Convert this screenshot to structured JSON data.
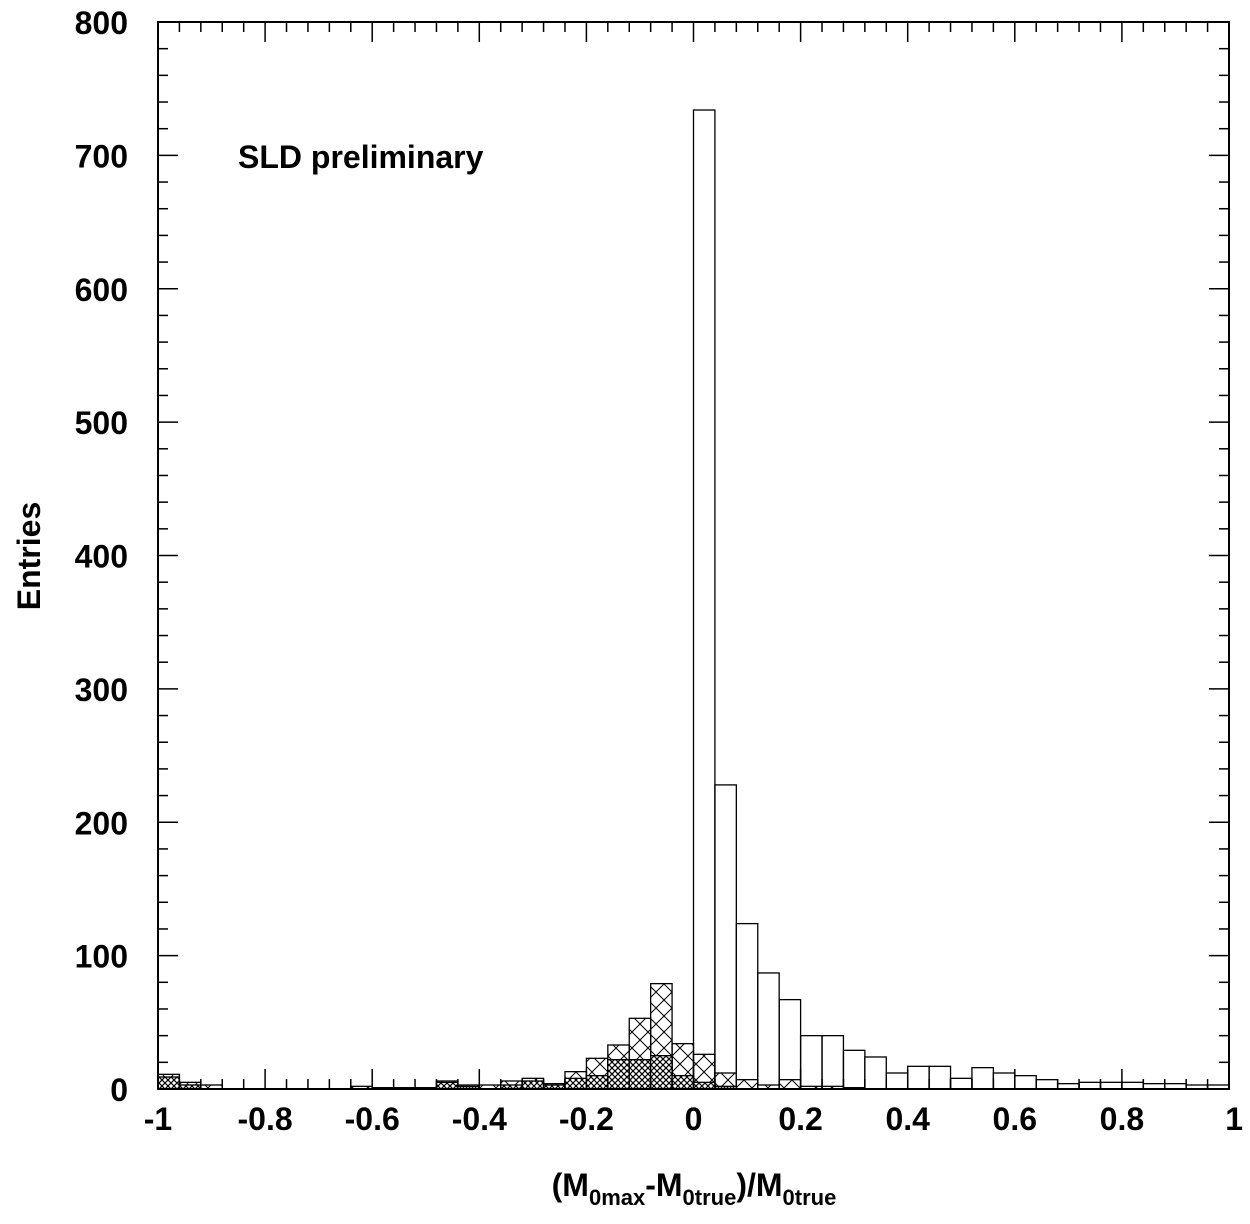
{
  "chart_data": {
    "type": "histogram",
    "annotation": "SLD preliminary",
    "ylabel": "Entries",
    "xlabel": {
      "parts": [
        {
          "text": "(M",
          "sub": false
        },
        {
          "text": "0max",
          "sub": true
        },
        {
          "text": "-M",
          "sub": false
        },
        {
          "text": "0true",
          "sub": true
        },
        {
          "text": ")/M",
          "sub": false
        },
        {
          "text": "0true",
          "sub": true
        }
      ]
    },
    "xlim": [
      -1,
      1
    ],
    "ylim": [
      0,
      800
    ],
    "x_ticks": [
      "-1",
      "-0.8",
      "-0.6",
      "-0.4",
      "-0.2",
      "0",
      "0.2",
      "0.4",
      "0.6",
      "0.8",
      "1"
    ],
    "y_ticks": [
      "0",
      "100",
      "200",
      "300",
      "400",
      "500",
      "600",
      "700",
      "800"
    ],
    "bin_width": 0.04,
    "series": [
      {
        "style": "open",
        "bins": [
          [
            0.0,
            734
          ],
          [
            0.04,
            228
          ],
          [
            0.08,
            124
          ],
          [
            0.12,
            87
          ],
          [
            0.16,
            67
          ],
          [
            0.2,
            40
          ],
          [
            0.24,
            40
          ],
          [
            0.28,
            29
          ],
          [
            0.32,
            24
          ],
          [
            0.36,
            12
          ],
          [
            0.4,
            17
          ],
          [
            0.44,
            17
          ],
          [
            0.48,
            8
          ],
          [
            0.52,
            16
          ],
          [
            0.56,
            12
          ],
          [
            0.6,
            10
          ],
          [
            0.64,
            7
          ],
          [
            0.68,
            4
          ],
          [
            0.72,
            5
          ],
          [
            0.76,
            5
          ],
          [
            0.8,
            5
          ],
          [
            0.84,
            4
          ],
          [
            0.88,
            4
          ],
          [
            0.92,
            3
          ],
          [
            0.96,
            3
          ]
        ]
      },
      {
        "style": "hatched",
        "bins": [
          [
            -1.0,
            11
          ],
          [
            -0.96,
            5
          ],
          [
            -0.92,
            3
          ],
          [
            -0.64,
            2
          ],
          [
            -0.6,
            1
          ],
          [
            -0.56,
            1
          ],
          [
            -0.52,
            1
          ],
          [
            -0.48,
            6
          ],
          [
            -0.44,
            3
          ],
          [
            -0.4,
            3
          ],
          [
            -0.36,
            6
          ],
          [
            -0.32,
            8
          ],
          [
            -0.28,
            4
          ],
          [
            -0.24,
            13
          ],
          [
            -0.2,
            23
          ],
          [
            -0.16,
            33
          ],
          [
            -0.12,
            53
          ],
          [
            -0.08,
            79
          ],
          [
            -0.04,
            34
          ],
          [
            0.0,
            26
          ],
          [
            0.04,
            12
          ],
          [
            0.08,
            7
          ],
          [
            0.12,
            3
          ],
          [
            0.16,
            7
          ],
          [
            0.2,
            2
          ],
          [
            0.24,
            2
          ],
          [
            0.28,
            1
          ]
        ]
      },
      {
        "style": "crosshatched",
        "bins": [
          [
            -1.0,
            9
          ],
          [
            -0.96,
            3
          ],
          [
            -0.48,
            5
          ],
          [
            -0.44,
            2
          ],
          [
            -0.36,
            3
          ],
          [
            -0.32,
            6
          ],
          [
            -0.28,
            3
          ],
          [
            -0.24,
            8
          ],
          [
            -0.2,
            10
          ],
          [
            -0.16,
            22
          ],
          [
            -0.12,
            22
          ],
          [
            -0.08,
            25
          ],
          [
            -0.04,
            10
          ],
          [
            0.0,
            5
          ],
          [
            0.04,
            2
          ]
        ]
      }
    ]
  }
}
